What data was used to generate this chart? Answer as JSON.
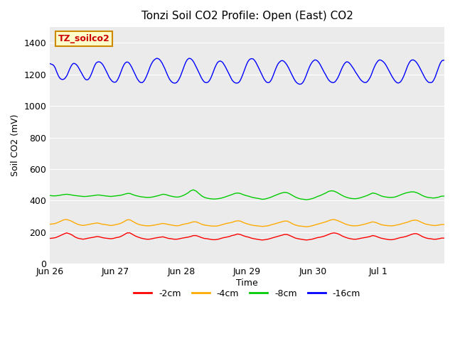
{
  "title": "Tonzi Soil CO2 Profile: Open (East) CO2",
  "xlabel": "Time",
  "ylabel": "Soil CO2 (mV)",
  "ylim": [
    0,
    1500
  ],
  "yticks": [
    0,
    200,
    400,
    600,
    800,
    1000,
    1200,
    1400
  ],
  "x_labels": [
    "Jun 26",
    "Jun 27",
    "Jun 28",
    "Jun 29",
    "Jun 30",
    "Jul 1"
  ],
  "x_positions": [
    0,
    24,
    48,
    72,
    96,
    120
  ],
  "xlim": [
    0,
    144
  ],
  "fig_bg_color": "#ffffff",
  "plot_bg_color": "#ebebeb",
  "grid_color": "#ffffff",
  "label_box_text": "TZ_soilco2",
  "label_box_bg": "#ffffcc",
  "label_box_edge": "#cc8800",
  "label_box_text_color": "#cc0000",
  "series_order": [
    "-2cm",
    "-4cm",
    "-8cm",
    "-16cm"
  ],
  "series": {
    "-2cm": {
      "color": "#ff0000",
      "data": [
        160,
        162,
        165,
        172,
        180,
        188,
        195,
        190,
        182,
        170,
        162,
        158,
        155,
        158,
        162,
        165,
        168,
        172,
        170,
        165,
        162,
        160,
        158,
        160,
        165,
        168,
        175,
        185,
        195,
        195,
        185,
        175,
        168,
        162,
        158,
        155,
        155,
        158,
        162,
        165,
        168,
        170,
        165,
        160,
        158,
        155,
        155,
        158,
        162,
        165,
        168,
        172,
        178,
        178,
        172,
        165,
        160,
        158,
        155,
        152,
        152,
        155,
        160,
        165,
        168,
        172,
        178,
        182,
        188,
        185,
        178,
        172,
        168,
        162,
        158,
        155,
        152,
        150,
        152,
        155,
        160,
        165,
        170,
        175,
        180,
        185,
        185,
        178,
        170,
        162,
        158,
        155,
        152,
        150,
        152,
        155,
        160,
        165,
        168,
        172,
        178,
        185,
        192,
        195,
        192,
        185,
        175,
        168,
        162,
        158,
        155,
        155,
        158,
        162,
        165,
        168,
        172,
        178,
        175,
        168,
        162,
        158,
        155,
        152,
        152,
        155,
        160,
        165,
        168,
        172,
        178,
        185,
        190,
        190,
        182,
        172,
        165,
        160,
        158,
        155,
        155,
        158,
        162,
        162
      ]
    },
    "-4cm": {
      "color": "#ffaa00",
      "data": [
        250,
        252,
        255,
        262,
        270,
        278,
        280,
        275,
        268,
        258,
        250,
        245,
        242,
        245,
        248,
        252,
        255,
        258,
        255,
        250,
        248,
        245,
        242,
        244,
        248,
        252,
        258,
        268,
        278,
        278,
        268,
        258,
        250,
        245,
        242,
        240,
        240,
        242,
        245,
        248,
        252,
        255,
        252,
        248,
        245,
        242,
        240,
        242,
        248,
        252,
        255,
        260,
        265,
        265,
        258,
        250,
        245,
        242,
        240,
        238,
        238,
        240,
        245,
        250,
        255,
        258,
        262,
        268,
        272,
        270,
        262,
        255,
        250,
        245,
        242,
        240,
        238,
        236,
        238,
        240,
        245,
        250,
        255,
        260,
        265,
        270,
        270,
        262,
        252,
        245,
        240,
        238,
        236,
        234,
        236,
        240,
        245,
        250,
        255,
        260,
        265,
        272,
        278,
        280,
        275,
        268,
        260,
        252,
        246,
        242,
        240,
        240,
        242,
        246,
        250,
        255,
        260,
        265,
        262,
        255,
        248,
        244,
        242,
        240,
        240,
        242,
        246,
        250,
        255,
        260,
        265,
        272,
        276,
        275,
        268,
        260,
        252,
        248,
        245,
        242,
        242,
        245,
        248,
        248
      ]
    },
    "-8cm": {
      "color": "#00cc00",
      "data": [
        432,
        430,
        430,
        432,
        435,
        438,
        440,
        438,
        435,
        432,
        430,
        428,
        426,
        426,
        428,
        430,
        432,
        435,
        435,
        432,
        430,
        428,
        426,
        428,
        430,
        432,
        435,
        440,
        445,
        445,
        438,
        432,
        428,
        424,
        422,
        420,
        420,
        422,
        426,
        430,
        435,
        440,
        438,
        432,
        428,
        424,
        422,
        424,
        430,
        438,
        448,
        462,
        468,
        460,
        445,
        430,
        420,
        415,
        412,
        410,
        410,
        412,
        415,
        420,
        426,
        432,
        438,
        445,
        448,
        445,
        438,
        432,
        428,
        422,
        418,
        415,
        412,
        408,
        410,
        415,
        420,
        428,
        435,
        442,
        448,
        452,
        450,
        442,
        432,
        422,
        415,
        410,
        408,
        405,
        408,
        412,
        418,
        426,
        432,
        440,
        448,
        458,
        462,
        460,
        452,
        442,
        432,
        424,
        418,
        414,
        412,
        412,
        415,
        420,
        426,
        432,
        440,
        448,
        445,
        438,
        430,
        425,
        422,
        420,
        420,
        422,
        428,
        435,
        442,
        448,
        452,
        455,
        455,
        450,
        442,
        432,
        425,
        420,
        418,
        416,
        418,
        422,
        428,
        428
      ]
    },
    "-16cm": {
      "color": "#0000ff",
      "data": [
        1268,
        1265,
        1262,
        1255,
        1240,
        1218,
        1198,
        1182,
        1172,
        1168,
        1168,
        1172,
        1182,
        1195,
        1215,
        1235,
        1252,
        1265,
        1270,
        1268,
        1262,
        1252,
        1238,
        1222,
        1208,
        1192,
        1178,
        1168,
        1165,
        1168,
        1178,
        1195,
        1215,
        1238,
        1258,
        1272,
        1278,
        1280,
        1278,
        1272,
        1262,
        1248,
        1232,
        1215,
        1198,
        1180,
        1168,
        1158,
        1152,
        1150,
        1152,
        1162,
        1178,
        1198,
        1220,
        1242,
        1260,
        1272,
        1278,
        1278,
        1272,
        1260,
        1245,
        1228,
        1210,
        1192,
        1175,
        1162,
        1152,
        1148,
        1148,
        1155,
        1168,
        1185,
        1205,
        1228,
        1250,
        1268,
        1282,
        1292,
        1298,
        1302,
        1300,
        1295,
        1285,
        1272,
        1255,
        1238,
        1218,
        1198,
        1180,
        1165,
        1155,
        1148,
        1145,
        1145,
        1148,
        1158,
        1172,
        1190,
        1212,
        1235,
        1258,
        1278,
        1292,
        1300,
        1302,
        1298,
        1290,
        1278,
        1262,
        1245,
        1228,
        1210,
        1192,
        1175,
        1162,
        1152,
        1148,
        1148,
        1152,
        1162,
        1178,
        1198,
        1220,
        1242,
        1260,
        1275,
        1282,
        1285,
        1282,
        1275,
        1262,
        1248,
        1232,
        1215,
        1198,
        1180,
        1165,
        1155,
        1148,
        1145,
        1145,
        1148,
        1158,
        1175,
        1195,
        1218,
        1240,
        1262,
        1280,
        1292,
        1298,
        1300,
        1298,
        1290,
        1278,
        1262,
        1245,
        1228,
        1210,
        1192,
        1175,
        1162,
        1152,
        1148,
        1148,
        1155,
        1168,
        1188,
        1210,
        1232,
        1252,
        1268,
        1278,
        1285,
        1288,
        1285,
        1278,
        1268,
        1255,
        1240,
        1222,
        1205,
        1188,
        1172,
        1158,
        1148,
        1142,
        1138,
        1138,
        1142,
        1152,
        1168,
        1188,
        1210,
        1232,
        1252,
        1268,
        1280,
        1288,
        1292,
        1290,
        1284,
        1274,
        1260,
        1244,
        1228,
        1212,
        1198,
        1182,
        1168,
        1158,
        1152,
        1148,
        1148,
        1152,
        1162,
        1175,
        1192,
        1212,
        1232,
        1250,
        1265,
        1275,
        1280,
        1278,
        1272,
        1262,
        1250,
        1238,
        1224,
        1210,
        1198,
        1185,
        1172,
        1162,
        1155,
        1150,
        1148,
        1150,
        1158,
        1170,
        1185,
        1205,
        1228,
        1248,
        1265,
        1278,
        1288,
        1292,
        1290,
        1285,
        1278,
        1268,
        1255,
        1240,
        1224,
        1208,
        1192,
        1178,
        1165,
        1155,
        1148,
        1145,
        1148,
        1155,
        1168,
        1185,
        1205,
        1228,
        1250,
        1268,
        1282,
        1290,
        1292,
        1290,
        1284,
        1275,
        1262,
        1248,
        1232,
        1215,
        1198,
        1182,
        1168,
        1158,
        1150,
        1148,
        1148,
        1152,
        1165,
        1182,
        1205,
        1228,
        1252,
        1272,
        1285,
        1290,
        1290
      ]
    }
  },
  "legend": [
    {
      "label": "-2cm",
      "color": "#ff0000"
    },
    {
      "label": "-4cm",
      "color": "#ffaa00"
    },
    {
      "label": "-8cm",
      "color": "#00cc00"
    },
    {
      "label": "-16cm",
      "color": "#0000ff"
    }
  ]
}
